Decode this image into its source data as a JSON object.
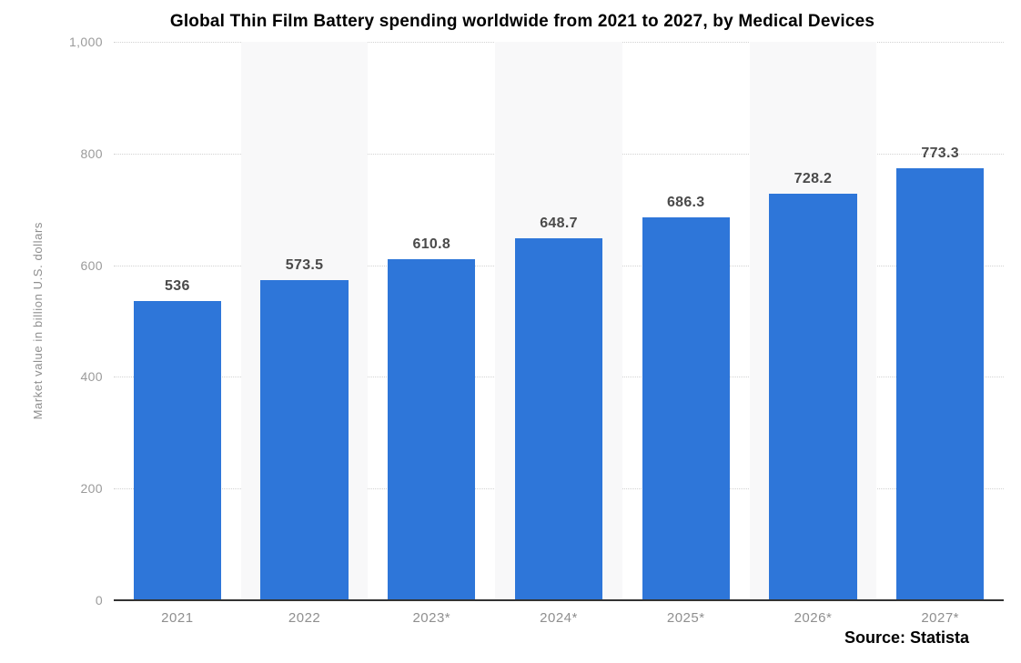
{
  "chart_data": {
    "type": "bar",
    "title": "Global Thin Film Battery spending worldwide from 2021 to 2027, by Medical Devices",
    "ylabel": "Market value in billion U.S. dollars",
    "xlabel": "",
    "categories": [
      "2021",
      "2022",
      "2023*",
      "2024*",
      "2025*",
      "2026*",
      "2027*"
    ],
    "values": [
      536,
      573.5,
      610.8,
      648.7,
      686.3,
      728.2,
      773.3
    ],
    "value_labels": [
      "536",
      "573.5",
      "610.8",
      "648.7",
      "686.3",
      "728.2",
      "773.3"
    ],
    "ylim": [
      0,
      1000
    ],
    "yticks": [
      "1,000",
      "800",
      "600",
      "400",
      "200",
      "0"
    ],
    "grid": "horizontal-dotted",
    "legend_position": "none",
    "bar_color": "#2e76d9",
    "band_color": "#f8f8f9",
    "source": "Source: Statista"
  }
}
